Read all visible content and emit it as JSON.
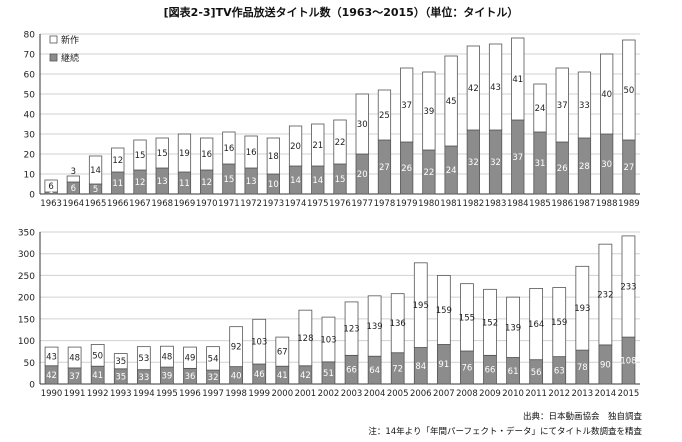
{
  "title": "[図表2-3]TV作品放送タイトル数（1963〜2015）（単位：タイトル）",
  "legend": {
    "new_label": "新作",
    "cont_label": "継続"
  },
  "colors": {
    "new": "#ffffff",
    "cont": "#8c8c8c",
    "stroke": "#555555",
    "grid": "#d0d0d0"
  },
  "source": "出典：日本動画協会　独自調査",
  "note": "注：14年より「年間パーフェクト・データ」にてタイトル数調査を精査",
  "chart_data": [
    {
      "type": "bar",
      "stacked": true,
      "categories": [
        "1963",
        "1964",
        "1965",
        "1966",
        "1967",
        "1968",
        "1969",
        "1970",
        "1971",
        "1972",
        "1973",
        "1974",
        "1975",
        "1976",
        "1977",
        "1978",
        "1979",
        "1980",
        "1981",
        "1982",
        "1983",
        "1984",
        "1985",
        "1986",
        "1987",
        "1988",
        "1989"
      ],
      "series": [
        {
          "name": "継続",
          "values": [
            1,
            6,
            5,
            11,
            12,
            13,
            11,
            12,
            15,
            13,
            10,
            14,
            14,
            15,
            20,
            27,
            26,
            22,
            24,
            32,
            32,
            37,
            31,
            26,
            28,
            30,
            27
          ]
        },
        {
          "name": "新作",
          "values": [
            6,
            3,
            14,
            12,
            15,
            15,
            19,
            16,
            16,
            16,
            18,
            20,
            21,
            22,
            30,
            25,
            37,
            39,
            45,
            42,
            43,
            41,
            24,
            37,
            33,
            40,
            50
          ]
        }
      ],
      "ylim": [
        0,
        80
      ],
      "yticks": [
        0,
        10,
        20,
        30,
        40,
        50,
        60,
        70,
        80
      ],
      "grid": true,
      "legend_position": "top-left"
    },
    {
      "type": "bar",
      "stacked": true,
      "categories": [
        "1990",
        "1991",
        "1992",
        "1993",
        "1994",
        "1995",
        "1996",
        "1997",
        "1998",
        "1999",
        "2000",
        "2001",
        "2002",
        "2003",
        "2004",
        "2005",
        "2006",
        "2007",
        "2008",
        "2009",
        "2010",
        "2011",
        "2012",
        "2013",
        "2014",
        "2015"
      ],
      "series": [
        {
          "name": "継続",
          "values": [
            42,
            37,
            41,
            35,
            33,
            39,
            36,
            32,
            40,
            46,
            41,
            42,
            51,
            66,
            64,
            72,
            84,
            91,
            76,
            66,
            61,
            56,
            63,
            78,
            90,
            108
          ]
        },
        {
          "name": "新作",
          "values": [
            43,
            48,
            50,
            35,
            53,
            48,
            49,
            54,
            92,
            103,
            67,
            128,
            103,
            123,
            139,
            136,
            195,
            159,
            155,
            152,
            139,
            164,
            159,
            193,
            232,
            233
          ]
        }
      ],
      "ylim": [
        0,
        350
      ],
      "yticks": [
        0,
        50,
        100,
        150,
        200,
        250,
        300,
        350
      ],
      "grid": true
    }
  ]
}
